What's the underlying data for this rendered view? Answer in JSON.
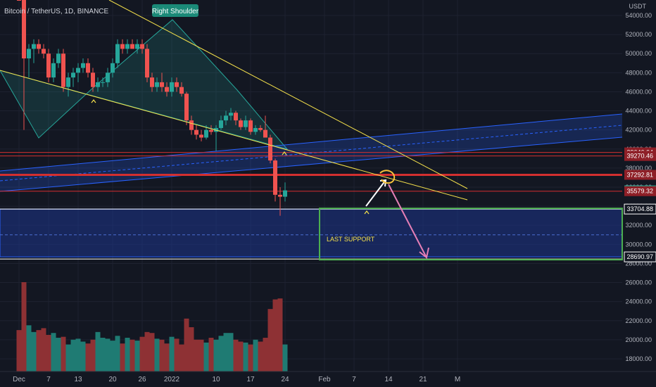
{
  "header": {
    "symbol": "Bitcoin / TetherUS, 1D, BINANCE",
    "currency": "USDT"
  },
  "annotations": {
    "right_shoulder": "Right Shoulder",
    "last_support": "LAST SUPPORT"
  },
  "colors": {
    "background": "#131722",
    "up": "#26a69a",
    "down": "#ef5350",
    "up_volume": "#1f7b73",
    "down_volume": "#8e3134",
    "trendline": "#f5e14b",
    "channel": "#2962ff",
    "support_box": "#4caf50",
    "resistance": "#d32f2f",
    "arrow": "#e57fb6"
  },
  "chart_data": {
    "type": "candlestick",
    "title": "Bitcoin / TetherUS, 1D, BINANCE",
    "y_axis_unit": "USDT",
    "ylim": [
      17000,
      56000
    ],
    "y_ticks": [
      54000,
      52000,
      50000,
      48000,
      46000,
      44000,
      42000,
      40000,
      38000,
      36000,
      34000,
      32000,
      30000,
      28000,
      26000,
      24000,
      22000,
      20000,
      18000
    ],
    "x_ticks": [
      {
        "label": "Dec",
        "day": 0
      },
      {
        "label": "7",
        "day": 6
      },
      {
        "label": "13",
        "day": 12
      },
      {
        "label": "20",
        "day": 19
      },
      {
        "label": "26",
        "day": 25
      },
      {
        "label": "2022",
        "day": 31
      },
      {
        "label": "10",
        "day": 40
      },
      {
        "label": "17",
        "day": 47
      },
      {
        "label": "24",
        "day": 54
      },
      {
        "label": "Feb",
        "day": 62
      },
      {
        "label": "7",
        "day": 68
      },
      {
        "label": "14",
        "day": 75
      },
      {
        "label": "21",
        "day": 82
      },
      {
        "label": "M",
        "day": 89
      }
    ],
    "price_labels": [
      {
        "value": 39646.64,
        "text": "39646.64",
        "style": "resistance"
      },
      {
        "value": 39270.46,
        "text": "39270.46",
        "style": "resistance"
      },
      {
        "value": 37292.81,
        "text": "37292.81",
        "style": "resistance"
      },
      {
        "value": 35664.41,
        "text": "35664.41",
        "style": "current"
      },
      {
        "value": 35579.32,
        "text": "35579.32",
        "style": "resistance"
      },
      {
        "value": 33704.88,
        "text": "33704.88",
        "style": "support"
      },
      {
        "value": 28690.97,
        "text": "28690.97",
        "style": "support"
      }
    ],
    "candles_ohlc": [
      [
        57000,
        59000,
        56000,
        56500
      ],
      [
        56500,
        57500,
        42000,
        49500
      ],
      [
        49500,
        51000,
        47500,
        50500
      ],
      [
        50500,
        51500,
        49000,
        51000
      ],
      [
        51000,
        51500,
        50000,
        50500
      ],
      [
        50500,
        51000,
        49500,
        50000
      ],
      [
        50000,
        50500,
        47000,
        47500
      ],
      [
        47500,
        49500,
        47000,
        49000
      ],
      [
        49000,
        50500,
        48500,
        50000
      ],
      [
        50000,
        50500,
        46000,
        46500
      ],
      [
        46500,
        48000,
        45500,
        47500
      ],
      [
        47500,
        48500,
        46500,
        48000
      ],
      [
        48000,
        49000,
        47000,
        48500
      ],
      [
        48500,
        49500,
        48000,
        49000
      ],
      [
        49000,
        49500,
        47500,
        48000
      ],
      [
        48000,
        48500,
        46000,
        46500
      ],
      [
        46500,
        47500,
        46000,
        47000
      ],
      [
        47000,
        47500,
        46500,
        47000
      ],
      [
        47000,
        48500,
        46500,
        48000
      ],
      [
        48000,
        49500,
        47500,
        49000
      ],
      [
        49000,
        51500,
        48500,
        51000
      ],
      [
        51000,
        51500,
        50000,
        50500
      ],
      [
        50500,
        51500,
        50000,
        51000
      ],
      [
        51000,
        51500,
        50500,
        50500
      ],
      [
        50500,
        51500,
        50000,
        51000
      ],
      [
        51000,
        51500,
        50000,
        50500
      ],
      [
        50500,
        51000,
        47000,
        47500
      ],
      [
        47500,
        48000,
        46000,
        46500
      ],
      [
        46500,
        47500,
        46000,
        47000
      ],
      [
        47000,
        48000,
        46000,
        46500
      ],
      [
        46500,
        47000,
        45500,
        46000
      ],
      [
        46000,
        47500,
        45500,
        47000
      ],
      [
        47000,
        47500,
        46000,
        46500
      ],
      [
        46500,
        47000,
        45500,
        45800
      ],
      [
        45800,
        46000,
        42500,
        43000
      ],
      [
        43000,
        43500,
        41500,
        42000
      ],
      [
        42000,
        42500,
        41000,
        41500
      ],
      [
        41500,
        42000,
        40800,
        41200
      ],
      [
        41200,
        42500,
        41000,
        42000
      ],
      [
        42000,
        42500,
        41500,
        41800
      ],
      [
        41800,
        42500,
        39800,
        42200
      ],
      [
        42200,
        43500,
        42000,
        43000
      ],
      [
        43000,
        44000,
        42500,
        43500
      ],
      [
        43500,
        44300,
        43000,
        43800
      ],
      [
        43800,
        44000,
        42500,
        43000
      ],
      [
        43000,
        43200,
        42000,
        42300
      ],
      [
        42300,
        43500,
        42000,
        43000
      ],
      [
        43000,
        43200,
        41500,
        41800
      ],
      [
        41800,
        42500,
        41500,
        42200
      ],
      [
        42200,
        42500,
        41800,
        42000
      ],
      [
        42000,
        43500,
        41500,
        41200
      ],
      [
        41200,
        41500,
        38500,
        38800
      ],
      [
        38800,
        39000,
        34500,
        35200
      ],
      [
        35200,
        36000,
        33000,
        35000
      ],
      [
        35000,
        36500,
        34500,
        35664
      ]
    ],
    "volume_k": [
      21000,
      26000,
      21500,
      20800,
      21000,
      21200,
      20500,
      20700,
      20200,
      20300,
      19500,
      20000,
      20100,
      19800,
      19600,
      20000,
      20800,
      20200,
      20100,
      19900,
      20400,
      19600,
      20200,
      20000,
      19900,
      20300,
      20800,
      20700,
      20100,
      20000,
      19600,
      20300,
      20100,
      19500,
      22200,
      21300,
      20000,
      20000,
      19700,
      20200,
      20000,
      20400,
      20700,
      20700,
      20000,
      19800,
      19700,
      19500,
      20000,
      19800,
      20200,
      23200,
      24200,
      24300,
      19500
    ],
    "volume_axis_mapping_note_removed": ""
  }
}
